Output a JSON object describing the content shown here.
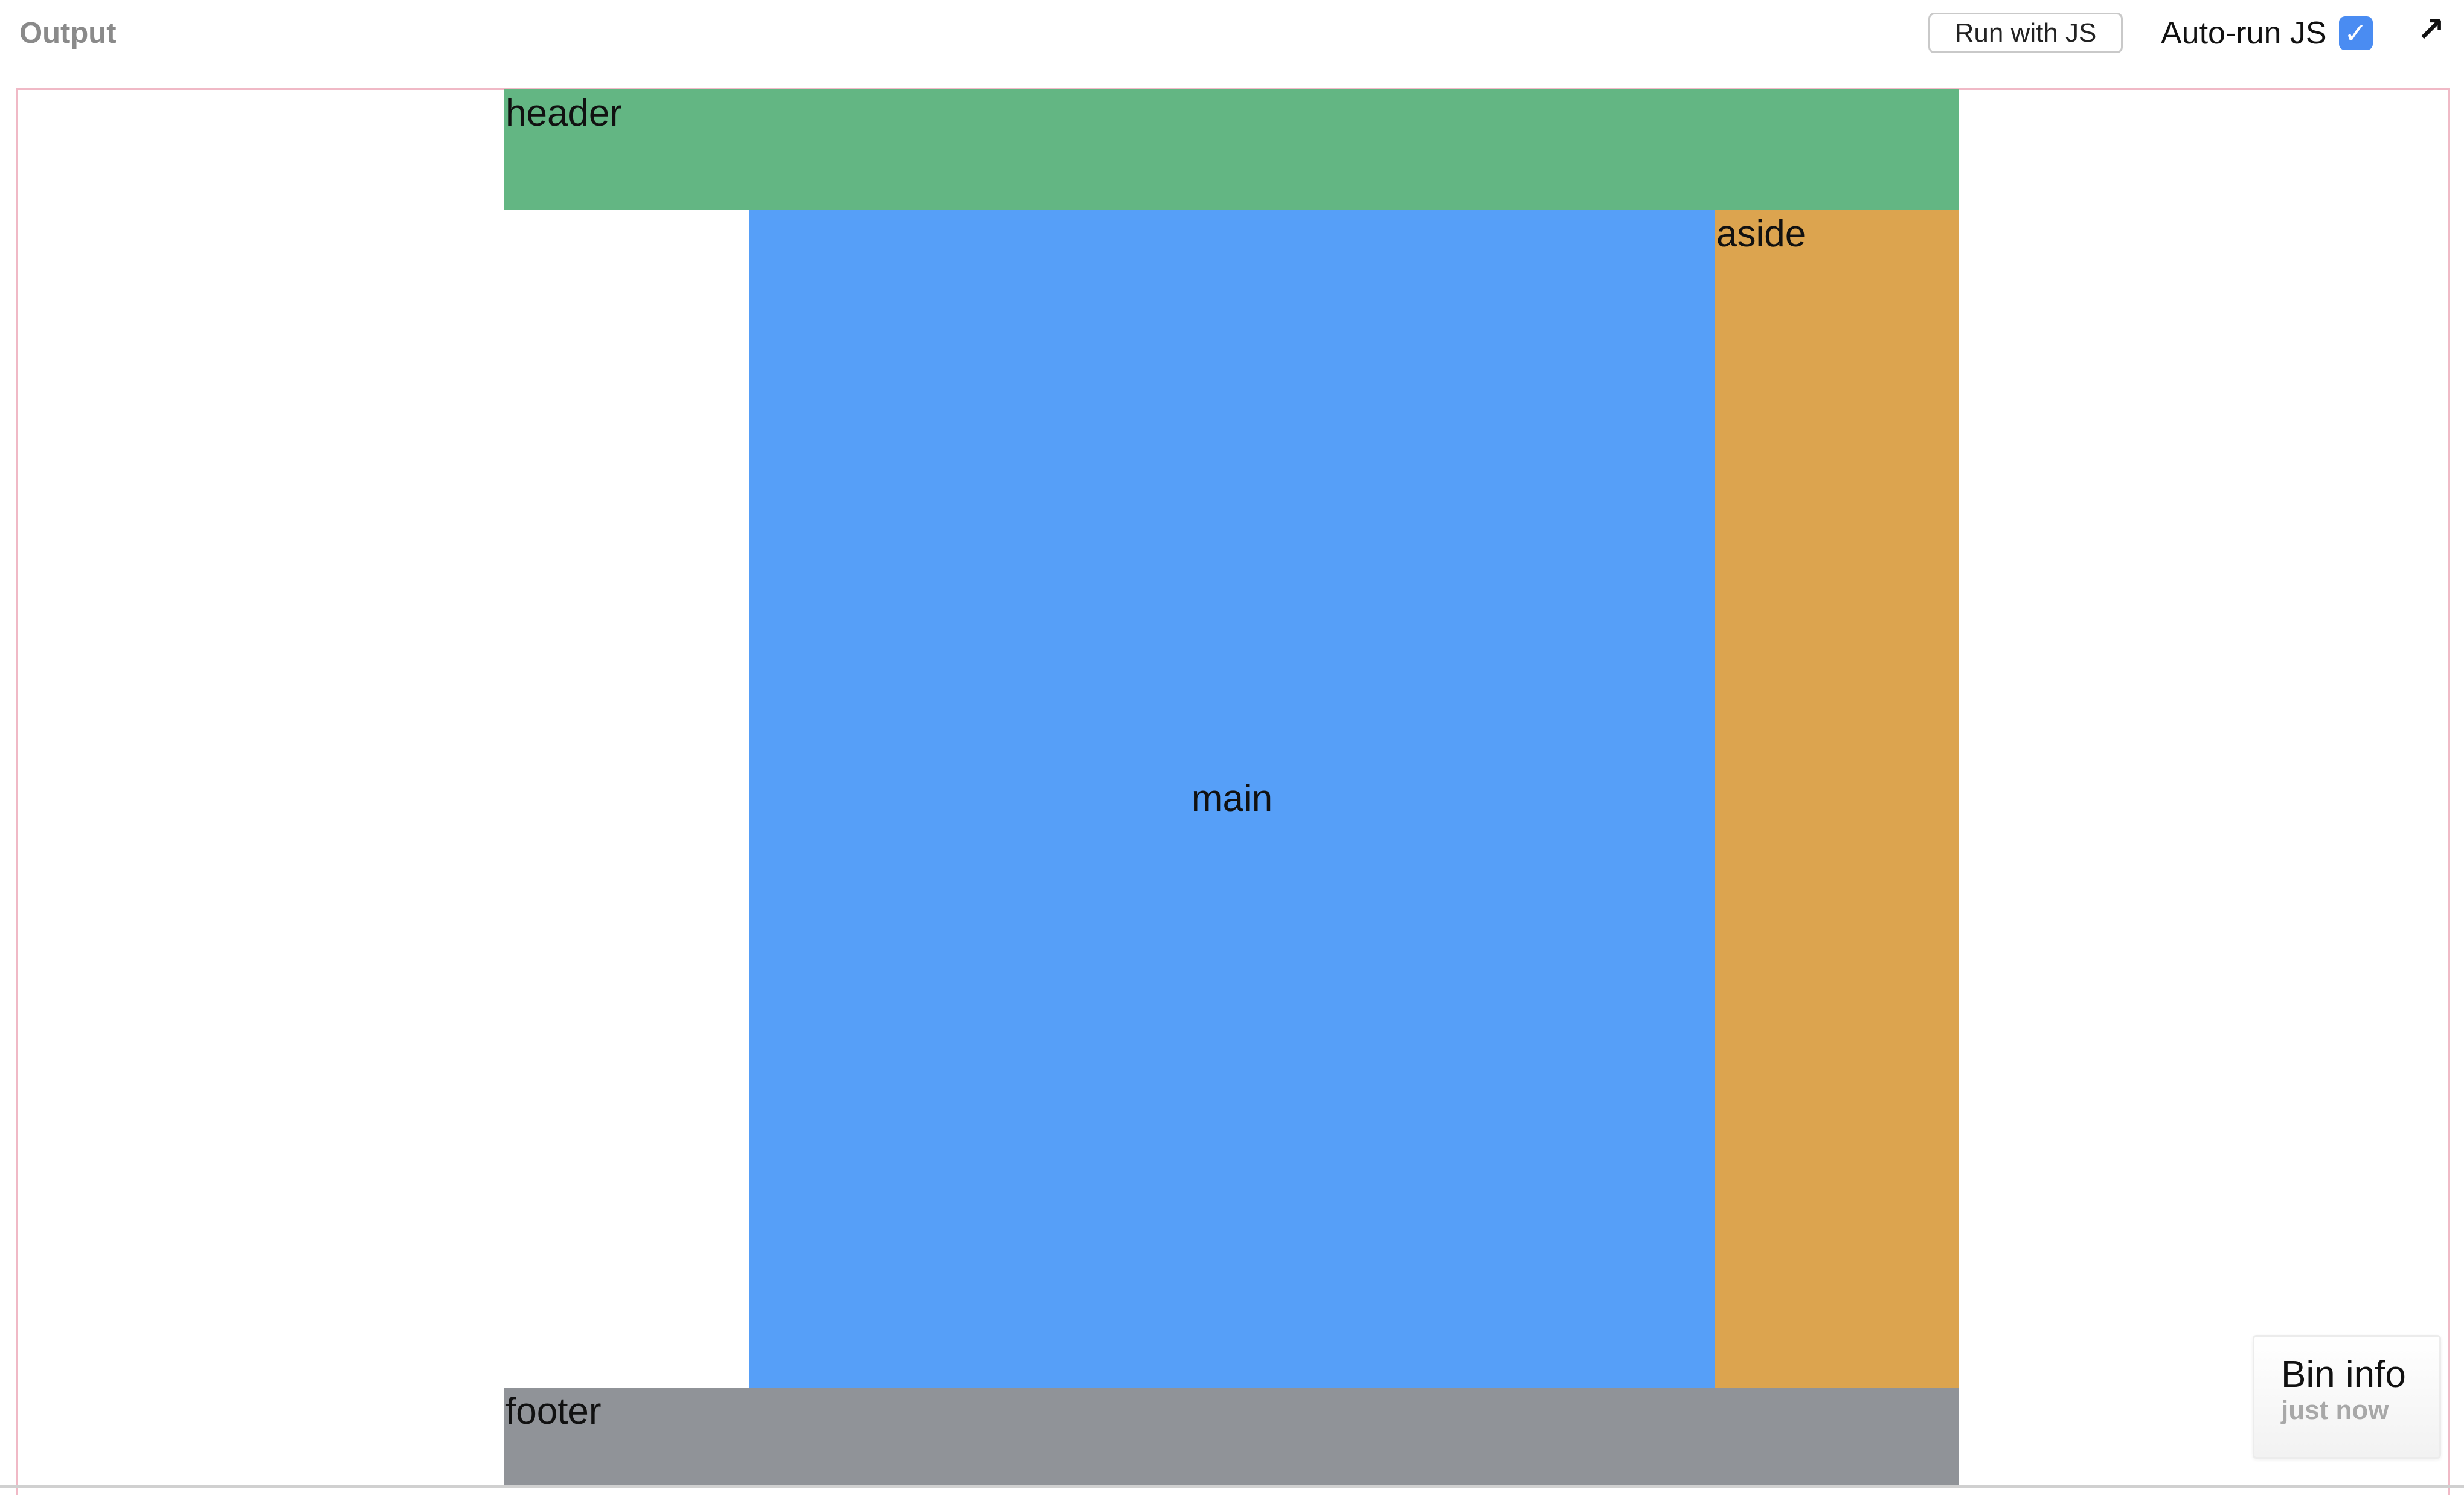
{
  "toolbar": {
    "title": "Output",
    "run_button_label": "Run with JS",
    "autorun_label": "Auto-run JS",
    "autorun_checked_glyph": "✓",
    "popout_glyph": "↗",
    "popout_icon": "popout-arrow-icon"
  },
  "layout": {
    "header_label": "header",
    "main_label": "main",
    "aside_label": "aside",
    "footer_label": "footer",
    "colors": {
      "header": "#63b683",
      "main": "#569ff8",
      "aside": "#dca44f",
      "footer": "#909398",
      "frame_border": "#f0b9c6",
      "checkbox": "#4a8cf2"
    }
  },
  "bin_info": {
    "title": "Bin info",
    "timestamp": "just now"
  }
}
